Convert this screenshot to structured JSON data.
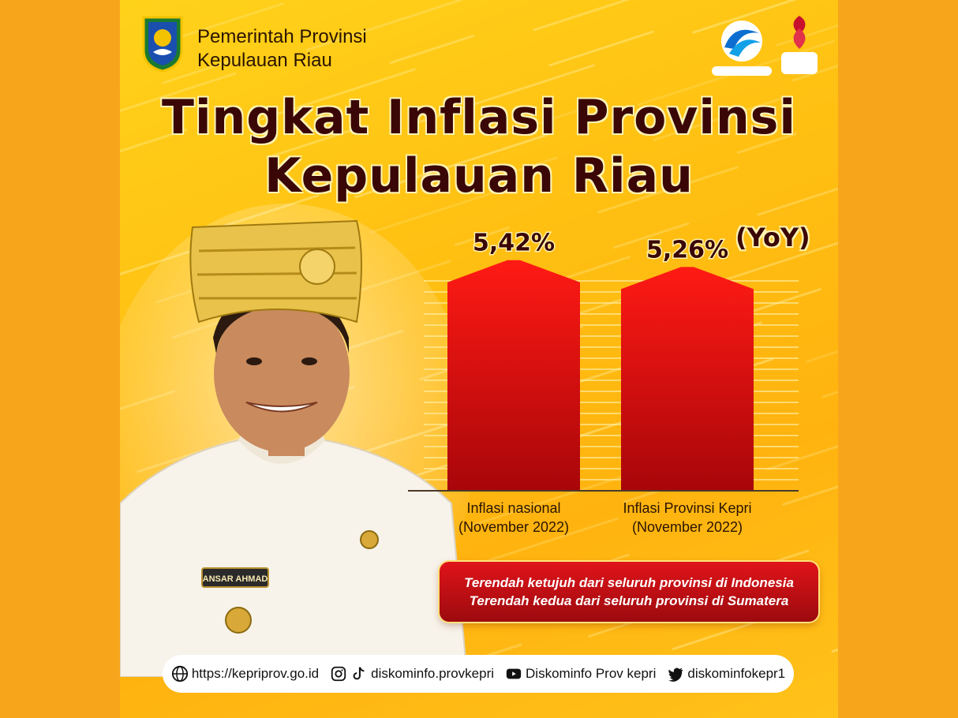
{
  "header": {
    "org_line1": "Pemerintah Provinsi",
    "org_line2": "Kepulauan Riau",
    "logo_icon": "kepri-coat-of-arms-icon",
    "partner_logos": [
      "diskominfo-kepri-logo",
      "g20-indonesia-2022-logo"
    ]
  },
  "title": {
    "line1": "Tingkat Inflasi Provinsi",
    "line2": "Kepulauan Riau",
    "qualifier": "(YoY)"
  },
  "chart_data": {
    "type": "bar",
    "categories": [
      "Inflasi nasional\n(November 2022)",
      "Inflasi Provinsi Kepri\n(November 2022)"
    ],
    "values": [
      5.42,
      5.26
    ],
    "data_labels": [
      "5,42%",
      "5,26%"
    ],
    "title": "Tingkat Inflasi Provinsi Kepulauan Riau",
    "xlabel": "",
    "ylabel": "",
    "ylim": [
      0,
      5.6
    ],
    "grid": true
  },
  "badge": {
    "line1": "Terendah ketujuh dari seluruh provinsi di Indonesia",
    "line2": "Terendah kedua dari seluruh provinsi di Sumatera"
  },
  "person": {
    "name_tag": "ANSAR AHMAD"
  },
  "footer": {
    "website": "https://kepriprov.go.id",
    "instagram": "diskominfo.provkepri",
    "youtube": "Diskominfo Prov kepri",
    "twitter": "diskominfokepr1"
  },
  "colors": {
    "bar_top": "#ff1a14",
    "bar_bottom": "#a8060a",
    "title_text": "#3a0606",
    "background": "#ffc21a"
  },
  "icons": {
    "website": "globe-icon",
    "instagram": "instagram-icon",
    "tiktok": "tiktok-icon",
    "youtube": "youtube-icon",
    "twitter": "twitter-icon"
  }
}
